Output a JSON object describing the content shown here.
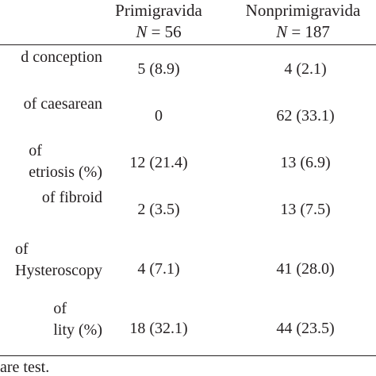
{
  "table": {
    "header": {
      "col1_title": "Primigravida",
      "col1_n_symbol": "N",
      "col1_n_value": " = 56",
      "col2_title": "Nonprimigravida",
      "col2_n_symbol": "N",
      "col2_n_value": " = 187"
    },
    "rows": [
      {
        "label_lines": [
          "d conception"
        ],
        "primigravida": "5 (8.9)",
        "nonprimigravida": "4 (2.1)"
      },
      {
        "label_lines": [
          "of caesarean"
        ],
        "primigravida": "0",
        "nonprimigravida": "62 (33.1)"
      },
      {
        "label_lines": [
          "of",
          "etriosis (%)"
        ],
        "primigravida": "12 (21.4)",
        "nonprimigravida": "13 (6.9)"
      },
      {
        "label_lines": [
          "of fibroid"
        ],
        "primigravida": "2 (3.5)",
        "nonprimigravida": "13 (7.5)"
      },
      {
        "label_lines": [
          "of",
          "Hysteroscopy"
        ],
        "primigravida": "4 (7.1)",
        "nonprimigravida": "41 (28.0)"
      },
      {
        "label_lines": [
          "of",
          "lity (%)"
        ],
        "primigravida": "18 (32.1)",
        "nonprimigravida": "44 (23.5)"
      }
    ],
    "footnote": "are test."
  }
}
